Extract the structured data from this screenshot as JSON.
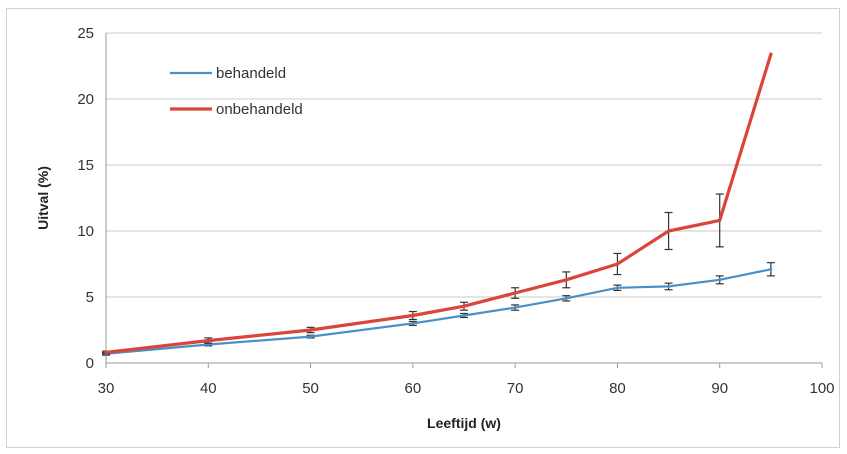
{
  "chart_data": {
    "type": "line",
    "xlabel": "Leeftijd (w)",
    "ylabel": "Uitval (%)",
    "xlim": [
      30,
      100
    ],
    "ylim": [
      0,
      25
    ],
    "x_ticks": [
      30,
      40,
      50,
      60,
      70,
      80,
      90,
      100
    ],
    "y_ticks": [
      0,
      5,
      10,
      15,
      20,
      25
    ],
    "grid": "horizontal",
    "legend_position": "top-left",
    "series": [
      {
        "name": "behandeld",
        "color": "#4a90c8",
        "x": [
          30,
          40,
          50,
          60,
          65,
          70,
          75,
          80,
          85,
          90,
          95
        ],
        "y": [
          0.7,
          1.4,
          2.0,
          3.0,
          3.6,
          4.2,
          4.9,
          5.7,
          5.8,
          6.3,
          7.1
        ],
        "err": [
          0.1,
          0.1,
          0.1,
          0.15,
          0.15,
          0.2,
          0.2,
          0.2,
          0.25,
          0.3,
          0.5
        ]
      },
      {
        "name": "onbehandeld",
        "color": "#d9453a",
        "x": [
          30,
          40,
          50,
          60,
          65,
          70,
          75,
          80,
          85,
          90,
          95
        ],
        "y": [
          0.8,
          1.7,
          2.5,
          3.6,
          4.3,
          5.3,
          6.3,
          7.5,
          10.0,
          10.8,
          23.4
        ],
        "err": [
          0.1,
          0.2,
          0.2,
          0.3,
          0.3,
          0.4,
          0.6,
          0.8,
          1.4,
          2.0,
          0
        ]
      }
    ]
  }
}
